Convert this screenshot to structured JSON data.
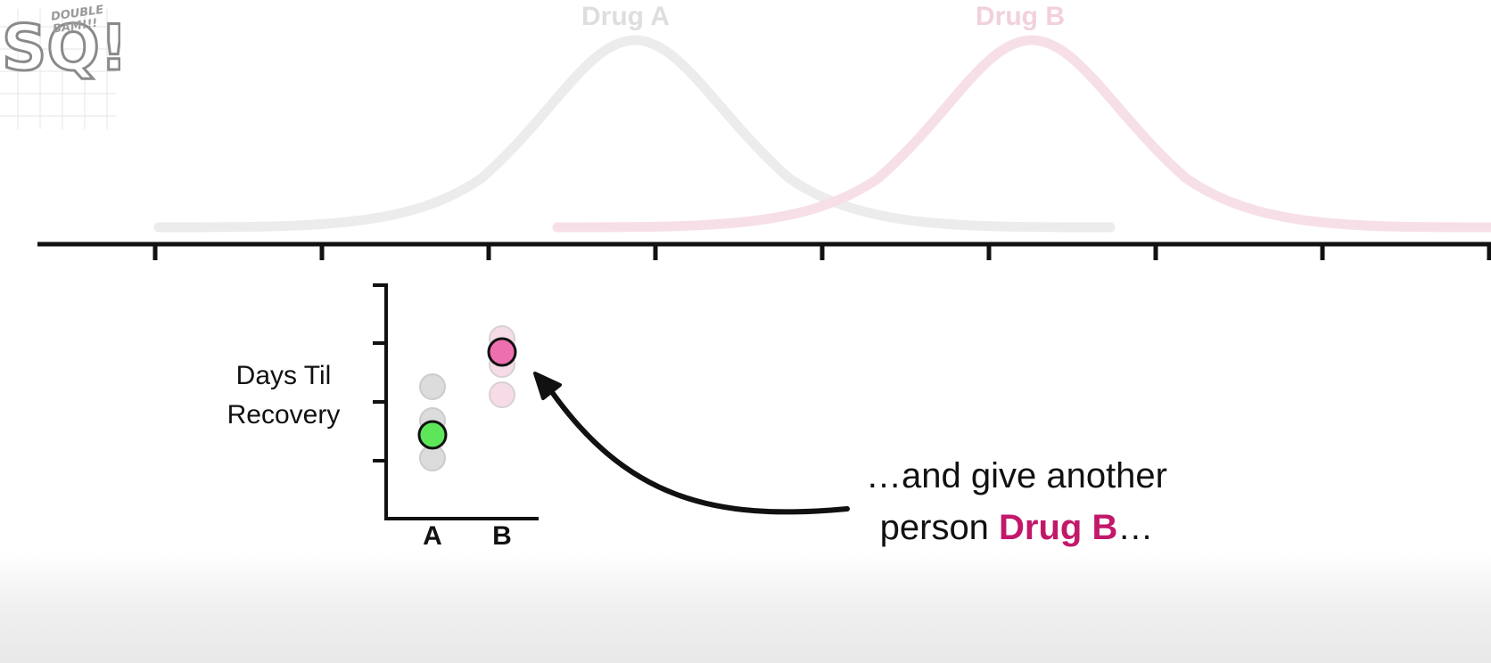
{
  "logo": {
    "top_text": "DOUBLE",
    "mid_text": "BAM!!!",
    "letters": "SQ!"
  },
  "distributions": [
    {
      "name": "Drug A",
      "color": "#dedede"
    },
    {
      "name": "Drug B",
      "color": "#f2d0dd"
    }
  ],
  "axis": {
    "ylabel": "Days Til Recovery",
    "ylabel_line1": "Days Til",
    "ylabel_line2": "Recovery",
    "xticks": [
      "A",
      "B"
    ]
  },
  "points": [
    {
      "group": "A",
      "color": "#dcdcdc",
      "faded": true
    },
    {
      "group": "A",
      "color": "#dcdcdc",
      "faded": true
    },
    {
      "group": "A",
      "color": "#dcdcdc",
      "faded": true
    },
    {
      "group": "A",
      "color": "#5ee65a",
      "faded": false
    },
    {
      "group": "B",
      "color": "#f6dce6",
      "faded": true
    },
    {
      "group": "B",
      "color": "#f6dce6",
      "faded": true
    },
    {
      "group": "B",
      "color": "#f6dce6",
      "faded": true
    },
    {
      "group": "B",
      "color": "#ee6fb0",
      "faded": false
    }
  ],
  "caption": {
    "line1": "…and give another",
    "line2_prefix": "person ",
    "line2_highlight": "Drug B",
    "line2_suffix": "…",
    "highlight_color": "#c2186a"
  }
}
